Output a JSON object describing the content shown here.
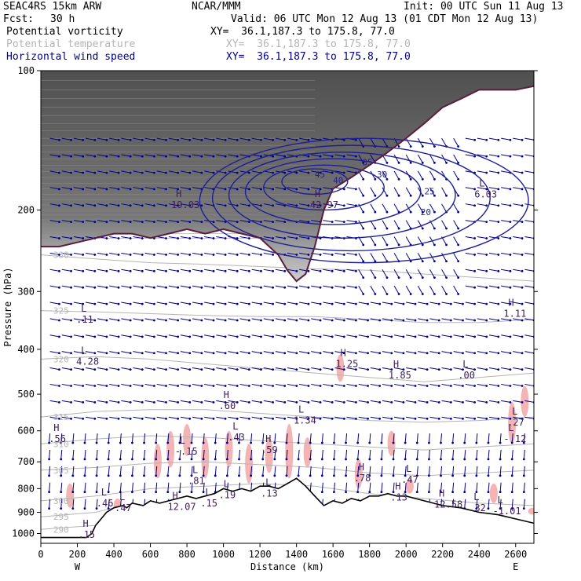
{
  "header": {
    "model": "SEAC4RS 15km ARW",
    "center": "NCAR/MMM",
    "init": "Init: 00 UTC Sun 11 Aug 13",
    "fcst_label": "Fcst:",
    "fcst_value": "30 h",
    "valid": "Valid: 06 UTC Mon 12 Aug 13 (01 CDT Mon 12 Aug 13)",
    "fields": [
      {
        "name": "Potential vorticity",
        "xy": "XY=  36.1,187.3 to 175.8, 77.0",
        "color": "#000000"
      },
      {
        "name": "Potential temperature",
        "xy": "XY=  36.1,187.3 to 175.8, 77.0",
        "color": "#b4b4b4"
      },
      {
        "name": "Horizontal wind speed",
        "xy": "XY=  36.1,187.3 to 175.8, 77.0",
        "color": "#00008c"
      }
    ]
  },
  "chart_data": {
    "type": "cross-section",
    "ylabel": "Pressure (hPa)",
    "xlabel": "Distance (km)",
    "x_range": [
      0,
      2700
    ],
    "y_range": [
      1050,
      100
    ],
    "y_scale": "log",
    "x_ticks": [
      0,
      200,
      400,
      600,
      800,
      1000,
      1200,
      1400,
      1600,
      1800,
      2000,
      2200,
      2400,
      2600
    ],
    "y_ticks": [
      100,
      200,
      300,
      400,
      500,
      600,
      700,
      800,
      900,
      1000
    ],
    "x_end_labels": {
      "left": "W",
      "right": "E"
    },
    "terrain_pressure": [
      [
        0,
        1020
      ],
      [
        200,
        1020
      ],
      [
        250,
        1020
      ],
      [
        280,
        1000
      ],
      [
        300,
        960
      ],
      [
        330,
        930
      ],
      [
        360,
        900
      ],
      [
        400,
        880
      ],
      [
        450,
        870
      ],
      [
        470,
        880
      ],
      [
        500,
        860
      ],
      [
        560,
        870
      ],
      [
        600,
        850
      ],
      [
        650,
        860
      ],
      [
        700,
        850
      ],
      [
        750,
        840
      ],
      [
        800,
        830
      ],
      [
        850,
        840
      ],
      [
        900,
        830
      ],
      [
        950,
        820
      ],
      [
        1000,
        800
      ],
      [
        1050,
        810
      ],
      [
        1100,
        800
      ],
      [
        1150,
        810
      ],
      [
        1200,
        790
      ],
      [
        1250,
        790
      ],
      [
        1300,
        800
      ],
      [
        1350,
        780
      ],
      [
        1400,
        760
      ],
      [
        1450,
        790
      ],
      [
        1500,
        830
      ],
      [
        1550,
        870
      ],
      [
        1600,
        850
      ],
      [
        1650,
        860
      ],
      [
        1700,
        840
      ],
      [
        1750,
        850
      ],
      [
        1800,
        830
      ],
      [
        1850,
        830
      ],
      [
        1900,
        820
      ],
      [
        1950,
        830
      ],
      [
        2000,
        830
      ],
      [
        2050,
        840
      ],
      [
        2100,
        850
      ],
      [
        2150,
        860
      ],
      [
        2200,
        870
      ],
      [
        2300,
        880
      ],
      [
        2400,
        900
      ],
      [
        2500,
        910
      ],
      [
        2600,
        930
      ],
      [
        2700,
        950
      ]
    ],
    "tropopause_pressure": [
      [
        0,
        240
      ],
      [
        100,
        240
      ],
      [
        200,
        235
      ],
      [
        300,
        230
      ],
      [
        400,
        225
      ],
      [
        500,
        225
      ],
      [
        600,
        230
      ],
      [
        700,
        225
      ],
      [
        800,
        220
      ],
      [
        900,
        225
      ],
      [
        1000,
        220
      ],
      [
        1100,
        225
      ],
      [
        1200,
        230
      ],
      [
        1300,
        250
      ],
      [
        1350,
        270
      ],
      [
        1400,
        285
      ],
      [
        1450,
        275
      ],
      [
        1500,
        240
      ],
      [
        1550,
        200
      ],
      [
        1600,
        180
      ],
      [
        1700,
        170
      ],
      [
        1800,
        160
      ],
      [
        1900,
        150
      ],
      [
        2000,
        140
      ],
      [
        2100,
        130
      ],
      [
        2200,
        120
      ],
      [
        2300,
        115
      ],
      [
        2400,
        110
      ],
      [
        2500,
        110
      ],
      [
        2600,
        110
      ],
      [
        2700,
        108
      ]
    ],
    "isentropes": [
      {
        "label": "330",
        "label_x": 120,
        "points": [
          [
            0,
            250
          ],
          [
            300,
            255
          ],
          [
            600,
            260
          ],
          [
            900,
            262
          ],
          [
            1200,
            265
          ],
          [
            1500,
            268
          ],
          [
            1800,
            270
          ],
          [
            2100,
            275
          ],
          [
            2400,
            280
          ],
          [
            2700,
            285
          ]
        ]
      },
      {
        "label": "325",
        "label_x": 120,
        "points": [
          [
            0,
            330
          ],
          [
            300,
            332
          ],
          [
            600,
            335
          ],
          [
            900,
            338
          ],
          [
            1200,
            340
          ],
          [
            1500,
            340
          ],
          [
            1800,
            345
          ],
          [
            2100,
            350
          ],
          [
            2400,
            350
          ],
          [
            2700,
            345
          ]
        ]
      },
      {
        "label": "320",
        "label_x": 120,
        "points": [
          [
            0,
            420
          ],
          [
            300,
            415
          ],
          [
            600,
            420
          ],
          [
            900,
            430
          ],
          [
            1200,
            440
          ],
          [
            1500,
            450
          ],
          [
            1800,
            460
          ],
          [
            2100,
            470
          ],
          [
            2400,
            460
          ],
          [
            2700,
            450
          ]
        ]
      },
      {
        "label": "315",
        "label_x": 120,
        "points": [
          [
            0,
            560
          ],
          [
            300,
            545
          ],
          [
            600,
            540
          ],
          [
            900,
            540
          ],
          [
            1200,
            550
          ],
          [
            1500,
            560
          ],
          [
            1800,
            570
          ],
          [
            2100,
            575
          ],
          [
            2400,
            570
          ],
          [
            2700,
            560
          ]
        ]
      },
      {
        "label": "310",
        "label_x": 120,
        "points": [
          [
            0,
            640
          ],
          [
            300,
            625
          ],
          [
            600,
            615
          ],
          [
            900,
            620
          ],
          [
            1200,
            630
          ],
          [
            1500,
            640
          ],
          [
            1800,
            650
          ],
          [
            2100,
            660
          ],
          [
            2400,
            650
          ],
          [
            2700,
            640
          ]
        ]
      },
      {
        "label": "305",
        "label_x": 120,
        "points": [
          [
            0,
            730
          ],
          [
            300,
            720
          ],
          [
            600,
            705
          ],
          [
            900,
            700
          ],
          [
            1200,
            710
          ],
          [
            1500,
            720
          ],
          [
            1800,
            740
          ],
          [
            2100,
            750
          ],
          [
            2400,
            740
          ],
          [
            2700,
            730
          ]
        ]
      },
      {
        "label": "300",
        "label_x": 120,
        "points": [
          [
            0,
            850
          ],
          [
            300,
            830
          ],
          [
            600,
            800
          ],
          [
            900,
            790
          ],
          [
            1200,
            780
          ],
          [
            1500,
            790
          ],
          [
            1800,
            820
          ],
          [
            2100,
            840
          ],
          [
            2400,
            860
          ],
          [
            2700,
            870
          ]
        ]
      },
      {
        "label": "295",
        "label_x": 120,
        "points": [
          [
            0,
            920
          ],
          [
            300,
            900
          ],
          [
            400,
            880
          ]
        ]
      },
      {
        "label": "290",
        "label_x": 120,
        "points": [
          [
            0,
            980
          ],
          [
            300,
            960
          ]
        ]
      }
    ],
    "wind_speed_contours": [
      {
        "label": "20",
        "label_x": 2080,
        "label_p": 205,
        "center": [
          1770,
          185
        ],
        "rx": 900,
        "ry_hpa": [
          140,
          260
        ]
      },
      {
        "label": "25",
        "label_x": 2100,
        "label_p": 185,
        "center": [
          1700,
          178
        ],
        "rx": 760,
        "ry_hpa": [
          145,
          245
        ]
      },
      {
        "label": "30",
        "label_x": 1840,
        "label_p": 170,
        "center": [
          1650,
          175
        ],
        "rx": 620,
        "ry_hpa": [
          150,
          230
        ]
      },
      {
        "label": "35",
        "label_x": 1760,
        "label_p": 160,
        "center": [
          1600,
          172
        ],
        "rx": 480,
        "ry_hpa": [
          155,
          215
        ]
      },
      {
        "label": "40",
        "label_x": 1600,
        "label_p": 175,
        "center": [
          1550,
          170
        ],
        "rx": 330,
        "ry_hpa": [
          160,
          200
        ]
      },
      {
        "label": "45",
        "label_x": 1500,
        "label_p": 170,
        "center": [
          1500,
          170
        ],
        "rx": 180,
        "ry_hpa": [
          163,
          185
        ]
      }
    ],
    "pv_extrema": [
      {
        "kind": "H",
        "value": "19.03",
        "x": 740,
        "p": 195
      },
      {
        "kind": "H",
        "value": "42.97",
        "x": 1500,
        "p": 195
      },
      {
        "kind": "L",
        "value": "6.03",
        "x": 2400,
        "p": 185
      },
      {
        "kind": "L",
        "value": ".11",
        "x": 220,
        "p": 345
      },
      {
        "kind": "H",
        "value": "1.11",
        "x": 2560,
        "p": 335
      },
      {
        "kind": "L",
        "value": "4.28",
        "x": 220,
        "p": 425
      },
      {
        "kind": "H",
        "value": "1.25",
        "x": 1640,
        "p": 430
      },
      {
        "kind": "H",
        "value": "1.85",
        "x": 1930,
        "p": 455
      },
      {
        "kind": "L",
        "value": ".00",
        "x": 2310,
        "p": 455
      },
      {
        "kind": "H",
        "value": ".60",
        "x": 1000,
        "p": 530
      },
      {
        "kind": "L",
        "value": "1.34",
        "x": 1410,
        "p": 570
      },
      {
        "kind": "L",
        "value": ".27",
        "x": 2580,
        "p": 575
      },
      {
        "kind": "H",
        "value": ".56",
        "x": 70,
        "p": 625
      },
      {
        "kind": "L",
        "value": ".43",
        "x": 1050,
        "p": 620
      },
      {
        "kind": "H",
        "value": ".59",
        "x": 1230,
        "p": 660
      },
      {
        "kind": "L",
        "value": "-.15",
        "x": 760,
        "p": 665
      },
      {
        "kind": "L",
        "value": "-.12",
        "x": 2560,
        "p": 625
      },
      {
        "kind": "L",
        "value": ".81",
        "x": 830,
        "p": 770
      },
      {
        "kind": "H",
        "value": ".78",
        "x": 1740,
        "p": 760
      },
      {
        "kind": "L",
        "value": ".47",
        "x": 2000,
        "p": 765
      },
      {
        "kind": "L",
        "value": ".19",
        "x": 1000,
        "p": 825
      },
      {
        "kind": "L",
        "value": ".13",
        "x": 1230,
        "p": 820
      },
      {
        "kind": "H",
        "value": ".13",
        "x": 1940,
        "p": 835
      },
      {
        "kind": "L",
        "value": ".46",
        "x": 330,
        "p": 860
      },
      {
        "kind": "L",
        "value": ".47",
        "x": 430,
        "p": 880
      },
      {
        "kind": "H",
        "value": "12.07",
        "x": 720,
        "p": 875
      },
      {
        "kind": "L",
        "value": ".15",
        "x": 900,
        "p": 860
      },
      {
        "kind": "H",
        "value": "12.58",
        "x": 2180,
        "p": 865
      },
      {
        "kind": "L",
        "value": "-1.01",
        "x": 2500,
        "p": 895
      },
      {
        "kind": "L",
        "value": ".32",
        "x": 2370,
        "p": 880
      },
      {
        "kind": "H",
        "value": ".15",
        "x": 230,
        "p": 1005
      }
    ],
    "pv_positive_patches": [
      {
        "x": 160,
        "p": [
          780,
          880
        ]
      },
      {
        "x": 420,
        "p": [
          840,
          900
        ]
      },
      {
        "x": 640,
        "p": [
          640,
          760
        ]
      },
      {
        "x": 710,
        "p": [
          600,
          720
        ]
      },
      {
        "x": 800,
        "p": [
          580,
          680
        ]
      },
      {
        "x": 900,
        "p": [
          620,
          760
        ]
      },
      {
        "x": 1030,
        "p": [
          600,
          720
        ]
      },
      {
        "x": 1140,
        "p": [
          640,
          780
        ]
      },
      {
        "x": 1250,
        "p": [
          620,
          740
        ]
      },
      {
        "x": 1360,
        "p": [
          580,
          760
        ]
      },
      {
        "x": 1460,
        "p": [
          620,
          720
        ]
      },
      {
        "x": 1640,
        "p": [
          410,
          470
        ]
      },
      {
        "x": 1740,
        "p": [
          690,
          800
        ]
      },
      {
        "x": 1920,
        "p": [
          600,
          680
        ]
      },
      {
        "x": 2020,
        "p": [
          760,
          820
        ]
      },
      {
        "x": 2480,
        "p": [
          780,
          860
        ]
      },
      {
        "x": 2580,
        "p": [
          520,
          640
        ]
      },
      {
        "x": 2650,
        "p": [
          480,
          560
        ]
      },
      {
        "x": 2690,
        "p": [
          880,
          910
        ]
      }
    ]
  }
}
